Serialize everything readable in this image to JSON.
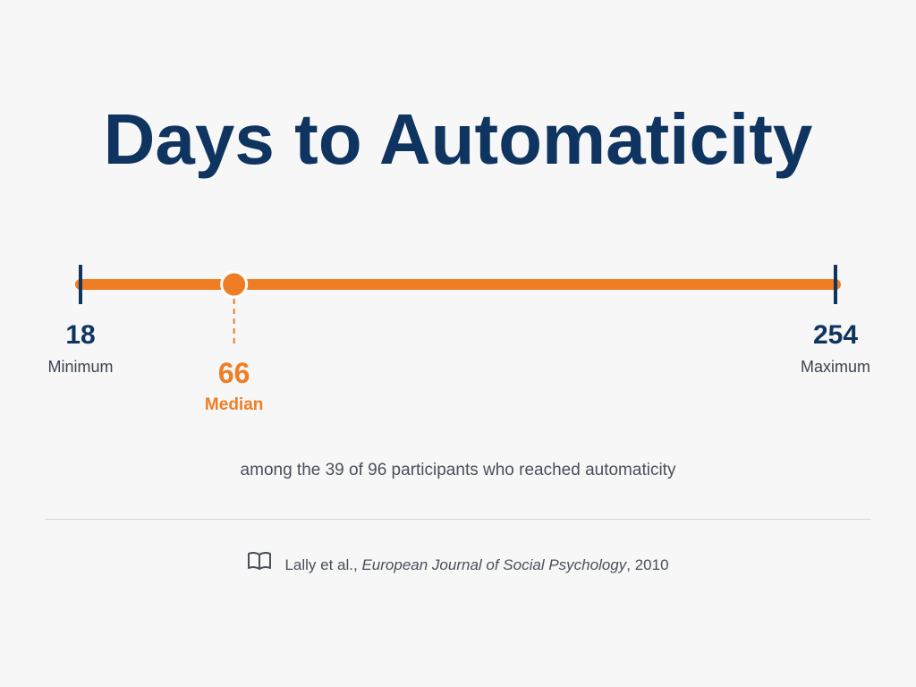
{
  "chart_data": {
    "type": "range",
    "title": "Days to Automaticity",
    "min": {
      "value": 18,
      "label": "Minimum"
    },
    "median": {
      "value": 66,
      "label": "Median"
    },
    "max": {
      "value": 254,
      "label": "Maximum"
    },
    "subtitle": "among the 39 of 96 participants who reached automaticity"
  },
  "citation": {
    "authors": "Lally et al.,",
    "journal": "European Journal of Social Psychology",
    "year": ", 2010"
  },
  "icons": {
    "citation_icon": "book-open-icon"
  },
  "colors": {
    "title": "#0f3460",
    "accent": "#ef7d24",
    "text": "#4a4f5a"
  }
}
